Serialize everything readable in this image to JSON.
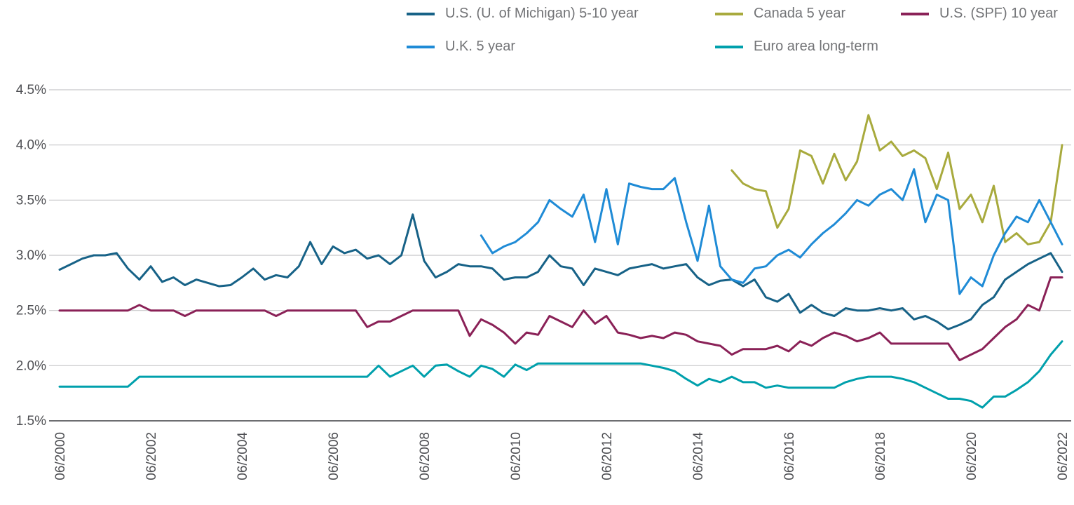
{
  "chart_data": {
    "type": "line",
    "title": "",
    "xlabel": "",
    "ylabel": "",
    "ylim": [
      1.5,
      4.5
    ],
    "grid": "horizontal-only",
    "legend_position": "top",
    "colors": {
      "grid_line": "#c8c8ca",
      "axis_line": "#6d6e71",
      "tick_text": "#4f5054",
      "legend_text": "#737477"
    },
    "y_ticks": [
      {
        "label": "4.5%",
        "value": 4.5
      },
      {
        "label": "4.0%",
        "value": 4.0
      },
      {
        "label": "3.5%",
        "value": 3.5
      },
      {
        "label": "3.0%",
        "value": 3.0
      },
      {
        "label": "2.5%",
        "value": 2.5
      },
      {
        "label": "2.0%",
        "value": 2.0
      },
      {
        "label": "1.5%",
        "value": 1.5
      }
    ],
    "x_ticks": [
      {
        "label": "06/2000",
        "value": 2000.5
      },
      {
        "label": "06/2002",
        "value": 2002.5
      },
      {
        "label": "06/2004",
        "value": 2004.5
      },
      {
        "label": "06/2006",
        "value": 2006.5
      },
      {
        "label": "06/2008",
        "value": 2008.5
      },
      {
        "label": "06/2010",
        "value": 2010.5
      },
      {
        "label": "06/2012",
        "value": 2012.5
      },
      {
        "label": "06/2014",
        "value": 2014.5
      },
      {
        "label": "06/2016",
        "value": 2016.5
      },
      {
        "label": "06/2018",
        "value": 2018.5
      },
      {
        "label": "06/2020",
        "value": 2020.5
      },
      {
        "label": "06/2022",
        "value": 2022.5
      }
    ],
    "series": [
      {
        "id": "us-michigan-5-10y",
        "name": "U.S. (U. of Michigan) 5-10 year",
        "color": "#176287",
        "x_start": 2000.5,
        "x_step": 0.25,
        "values": [
          2.87,
          2.92,
          2.97,
          3.0,
          3.0,
          3.02,
          2.88,
          2.78,
          2.9,
          2.76,
          2.8,
          2.73,
          2.78,
          2.75,
          2.72,
          2.73,
          2.8,
          2.88,
          2.78,
          2.82,
          2.8,
          2.9,
          3.12,
          2.92,
          3.08,
          3.02,
          3.05,
          2.97,
          3.0,
          2.92,
          3.0,
          3.37,
          2.95,
          2.8,
          2.85,
          2.92,
          2.9,
          2.9,
          2.88,
          2.78,
          2.8,
          2.8,
          2.85,
          3.0,
          2.9,
          2.88,
          2.73,
          2.88,
          2.85,
          2.82,
          2.88,
          2.9,
          2.92,
          2.88,
          2.9,
          2.92,
          2.8,
          2.73,
          2.77,
          2.78,
          2.72,
          2.78,
          2.62,
          2.58,
          2.65,
          2.48,
          2.55,
          2.48,
          2.45,
          2.52,
          2.5,
          2.5,
          2.52,
          2.5,
          2.52,
          2.42,
          2.45,
          2.4,
          2.33,
          2.37,
          2.42,
          2.55,
          2.62,
          2.78,
          2.85,
          2.92,
          2.97,
          3.02,
          2.85
        ]
      },
      {
        "id": "canada-5y",
        "name": "Canada 5 year",
        "color": "#a8aa3d",
        "x_start": 2015.25,
        "x_step": 0.25,
        "values": [
          3.77,
          3.65,
          3.6,
          3.58,
          3.25,
          3.42,
          3.95,
          3.9,
          3.65,
          3.92,
          3.68,
          3.85,
          4.27,
          3.95,
          4.03,
          3.9,
          3.95,
          3.88,
          3.6,
          3.93,
          3.42,
          3.55,
          3.3,
          3.63,
          3.12,
          3.2,
          3.1,
          3.12,
          3.3,
          4.0
        ]
      },
      {
        "id": "us-spf-10y",
        "name": "U.S. (SPF) 10 year",
        "color": "#8a2157",
        "x_start": 2000.5,
        "x_step": 0.25,
        "values": [
          2.5,
          2.5,
          2.5,
          2.5,
          2.5,
          2.5,
          2.5,
          2.55,
          2.5,
          2.5,
          2.5,
          2.45,
          2.5,
          2.5,
          2.5,
          2.5,
          2.5,
          2.5,
          2.5,
          2.45,
          2.5,
          2.5,
          2.5,
          2.5,
          2.5,
          2.5,
          2.5,
          2.35,
          2.4,
          2.4,
          2.45,
          2.5,
          2.5,
          2.5,
          2.5,
          2.5,
          2.27,
          2.42,
          2.37,
          2.3,
          2.2,
          2.3,
          2.28,
          2.45,
          2.4,
          2.35,
          2.5,
          2.38,
          2.45,
          2.3,
          2.28,
          2.25,
          2.27,
          2.25,
          2.3,
          2.28,
          2.22,
          2.2,
          2.18,
          2.1,
          2.15,
          2.15,
          2.15,
          2.18,
          2.13,
          2.22,
          2.18,
          2.25,
          2.3,
          2.27,
          2.22,
          2.25,
          2.3,
          2.2,
          2.2,
          2.2,
          2.2,
          2.2,
          2.2,
          2.05,
          2.1,
          2.15,
          2.25,
          2.35,
          2.42,
          2.55,
          2.5,
          2.8,
          2.8
        ]
      },
      {
        "id": "uk-5y",
        "name": "U.K. 5 year",
        "color": "#1f8bd6",
        "x_start": 2009.75,
        "x_step": 0.25,
        "values": [
          3.18,
          3.02,
          3.08,
          3.12,
          3.2,
          3.3,
          3.5,
          3.42,
          3.35,
          3.55,
          3.12,
          3.6,
          3.1,
          3.65,
          3.62,
          3.6,
          3.6,
          3.7,
          3.3,
          2.95,
          3.45,
          2.9,
          2.78,
          2.75,
          2.88,
          2.9,
          3.0,
          3.05,
          2.98,
          3.1,
          3.2,
          3.28,
          3.38,
          3.5,
          3.45,
          3.55,
          3.6,
          3.5,
          3.78,
          3.3,
          3.55,
          3.5,
          2.65,
          2.8,
          2.72,
          3.0,
          3.2,
          3.35,
          3.3,
          3.5,
          3.3,
          3.1
        ]
      },
      {
        "id": "euro-area-long-term",
        "name": "Euro area long-term",
        "color": "#00a0ac",
        "x_start": 2000.5,
        "x_step": 0.25,
        "values": [
          1.81,
          1.81,
          1.81,
          1.81,
          1.81,
          1.81,
          1.81,
          1.9,
          1.9,
          1.9,
          1.9,
          1.9,
          1.9,
          1.9,
          1.9,
          1.9,
          1.9,
          1.9,
          1.9,
          1.9,
          1.9,
          1.9,
          1.9,
          1.9,
          1.9,
          1.9,
          1.9,
          1.9,
          2.0,
          1.9,
          1.95,
          2.0,
          1.9,
          2.0,
          2.01,
          1.95,
          1.9,
          2.0,
          1.97,
          1.9,
          2.01,
          1.96,
          2.02,
          2.02,
          2.02,
          2.02,
          2.02,
          2.02,
          2.02,
          2.02,
          2.02,
          2.02,
          2.0,
          1.98,
          1.95,
          1.88,
          1.82,
          1.88,
          1.85,
          1.9,
          1.85,
          1.85,
          1.8,
          1.82,
          1.8,
          1.8,
          1.8,
          1.8,
          1.8,
          1.85,
          1.88,
          1.9,
          1.9,
          1.9,
          1.88,
          1.85,
          1.8,
          1.75,
          1.7,
          1.7,
          1.68,
          1.62,
          1.72,
          1.72,
          1.78,
          1.85,
          1.95,
          2.1,
          2.22
        ]
      }
    ]
  }
}
